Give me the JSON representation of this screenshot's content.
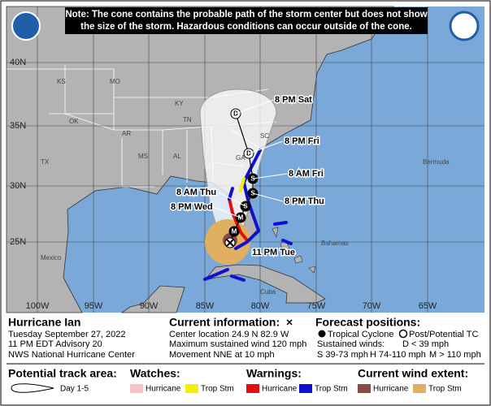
{
  "note": "Note: The cone contains the probable path of the storm center but does not show the size of the storm. Hazardous conditions can occur outside of the cone.",
  "map": {
    "lat_labels": [
      "40N",
      "35N",
      "30N",
      "25N"
    ],
    "lon_labels": [
      "100W",
      "95W",
      "90W",
      "85W",
      "80W",
      "75W",
      "70W",
      "65W"
    ],
    "places": [
      "KS",
      "MO",
      "KY",
      "OK",
      "AR",
      "TN",
      "SC",
      "GA",
      "TX",
      "MS",
      "AL",
      "Bermuda",
      "Mexico",
      "Bahamas",
      "Cuba"
    ],
    "current_label": "11 PM Tue",
    "forecast_points": [
      {
        "letter": "M"
      },
      {
        "letter": "M",
        "label": "8 PM Wed"
      },
      {
        "letter": "S",
        "label": "8 AM Thu"
      },
      {
        "letter": "S",
        "label": "8 PM Thu"
      },
      {
        "letter": "S",
        "label": "8 AM Fri"
      },
      {
        "letter": "D",
        "label": "8 PM Fri"
      },
      {
        "letter": "D",
        "label": "8 PM Sat"
      }
    ]
  },
  "info": {
    "storm": "Hurricane Ian",
    "date": "Tuesday September 27, 2022",
    "advisory": "11 PM EDT Advisory 20",
    "center": "NWS National Hurricane Center",
    "current_title": "Current information:",
    "current_symbol": "×",
    "location": "Center location 24.9 N 82.9 W",
    "wind": "Maximum sustained wind 120 mph",
    "movement": "Movement NNE at 10 mph",
    "forecast_title": "Forecast positions:",
    "tropical": "Tropical Cyclone",
    "post": "Post/Potential TC",
    "sustained": "Sustained winds:",
    "d": "D < 39 mph",
    "s": "S 39-73 mph",
    "h": "H 74-110 mph",
    "m": "M > 110 mph"
  },
  "legend": {
    "track_title": "Potential track area:",
    "track_days": "Day 1-5",
    "watches": "Watches:",
    "watch_hurricane": "Hurricane",
    "watch_trop": "Trop Stm",
    "warnings": "Warnings:",
    "warning_hurricane": "Hurricane",
    "warning_trop": "Trop Stm",
    "wind_title": "Current wind extent:",
    "wind_hurricane": "Hurricane",
    "wind_trop": "Trop Stm"
  }
}
